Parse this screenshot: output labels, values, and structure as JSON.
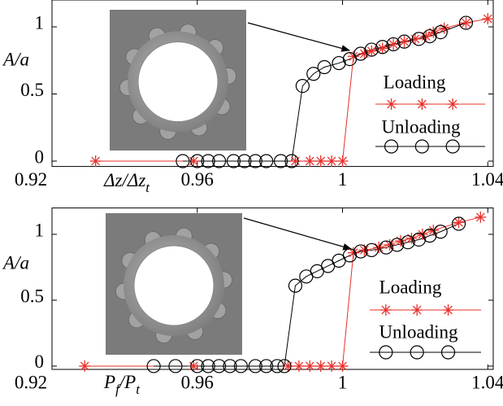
{
  "chart_data": [
    {
      "type": "scatter-line",
      "ylabel": "A/a",
      "xlabel": [
        "Δz/Δz",
        "t"
      ],
      "xlim": [
        0.92,
        1.0415
      ],
      "ylim": [
        -0.04,
        1.2
      ],
      "xticks": [
        0.92,
        0.96,
        1,
        1.04
      ],
      "yticks": [
        0,
        0.5,
        1
      ],
      "grid": false,
      "series": [
        {
          "name": "Loading",
          "color": "#e8302a",
          "marker": "asterisk",
          "x": [
            0.932,
            0.959,
            0.987,
            0.991,
            0.994,
            0.997,
            1.0,
            1.003,
            1.006,
            1.008,
            1.011,
            1.014,
            1.017,
            1.02,
            1.023,
            1.025,
            1.028,
            1.034,
            1.04
          ],
          "values": [
            0,
            0,
            0,
            0,
            0,
            0,
            0,
            0.78,
            0.8,
            0.82,
            0.84,
            0.87,
            0.89,
            0.91,
            0.93,
            0.96,
            0.99,
            1.03,
            1.06
          ]
        },
        {
          "name": "Unloading",
          "color": "#000000",
          "marker": "circle",
          "x": [
            0.956,
            0.96,
            0.963,
            0.966,
            0.97,
            0.973,
            0.976,
            0.979,
            0.983,
            0.986,
            0.989,
            0.992,
            0.995,
            0.999,
            1.002,
            1.005,
            1.008,
            1.011,
            1.014,
            1.017,
            1.021,
            1.024,
            1.027,
            1.034
          ],
          "values": [
            0,
            0,
            0,
            0,
            0,
            0,
            0,
            0,
            0,
            0,
            0.56,
            0.65,
            0.7,
            0.73,
            0.76,
            0.8,
            0.83,
            0.85,
            0.87,
            0.89,
            0.91,
            0.93,
            0.96,
            1.03
          ]
        }
      ]
    },
    {
      "type": "scatter-line",
      "ylabel": "A/a",
      "xlabel": [
        "P",
        "f",
        "/P",
        "t"
      ],
      "xlim": [
        0.92,
        1.0415
      ],
      "ylim": [
        -0.025,
        1.2
      ],
      "xticks": [
        0.92,
        0.96,
        1,
        1.04
      ],
      "yticks": [
        0,
        0.5,
        1
      ],
      "grid": false,
      "series": [
        {
          "name": "Loading",
          "color": "#e8302a",
          "marker": "asterisk",
          "x": [
            0.929,
            0.959,
            0.985,
            0.988,
            0.991,
            0.994,
            0.997,
            1.0,
            1.003,
            1.006,
            1.01,
            1.013,
            1.016,
            1.019,
            1.022,
            1.025,
            1.032,
            1.038
          ],
          "values": [
            0,
            0,
            0,
            0,
            0,
            0,
            0,
            0,
            0.86,
            0.88,
            0.9,
            0.92,
            0.95,
            0.97,
            1.0,
            1.03,
            1.09,
            1.13
          ]
        },
        {
          "name": "Unloading",
          "color": "#000000",
          "marker": "circle",
          "x": [
            0.948,
            0.954,
            0.96,
            0.963,
            0.966,
            0.969,
            0.972,
            0.976,
            0.979,
            0.982,
            0.984,
            0.987,
            0.99,
            0.993,
            0.996,
            0.999,
            1.002,
            1.005,
            1.008,
            1.012,
            1.015,
            1.018,
            1.021,
            1.024,
            1.027,
            1.032
          ],
          "values": [
            0,
            0,
            0,
            0,
            0,
            0,
            0,
            0,
            0,
            0,
            0,
            0.61,
            0.68,
            0.72,
            0.76,
            0.8,
            0.84,
            0.87,
            0.88,
            0.9,
            0.92,
            0.94,
            0.96,
            0.99,
            1.02,
            1.08
          ]
        }
      ]
    }
  ]
}
